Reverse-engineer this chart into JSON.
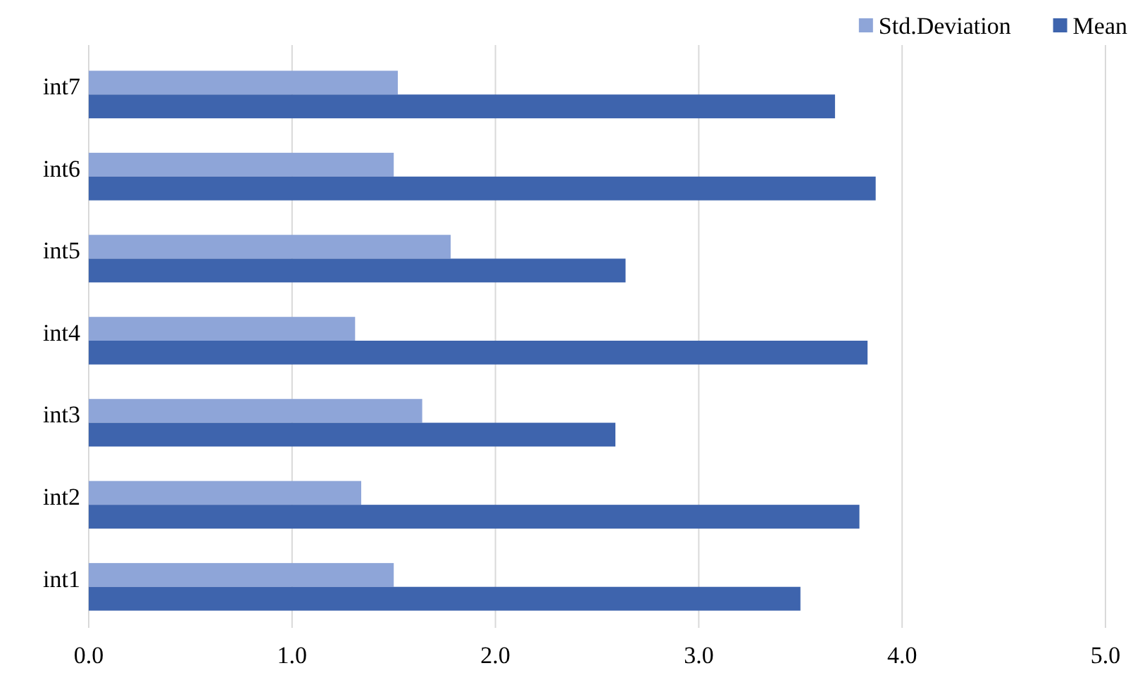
{
  "chart_data": {
    "type": "bar",
    "orientation": "horizontal",
    "categories": [
      "int7",
      "int6",
      "int5",
      "int4",
      "int3",
      "int2",
      "int1"
    ],
    "series": [
      {
        "name": "Std.Deviation",
        "color": "#8ea5d8",
        "values": [
          1.52,
          1.5,
          1.78,
          1.31,
          1.64,
          1.34,
          1.5
        ]
      },
      {
        "name": "Mean",
        "color": "#3e64ad",
        "values": [
          3.67,
          3.87,
          2.64,
          3.83,
          2.59,
          3.79,
          3.5
        ]
      }
    ],
    "xlim": [
      0,
      5
    ],
    "xticks": [
      {
        "value": 0,
        "label": "0.0"
      },
      {
        "value": 1,
        "label": "1.0"
      },
      {
        "value": 2,
        "label": "2.0"
      },
      {
        "value": 3,
        "label": "3.0"
      },
      {
        "value": 4,
        "label": "4.0"
      },
      {
        "value": 5,
        "label": "5.0"
      }
    ],
    "grid": "x",
    "legend": "top right"
  }
}
